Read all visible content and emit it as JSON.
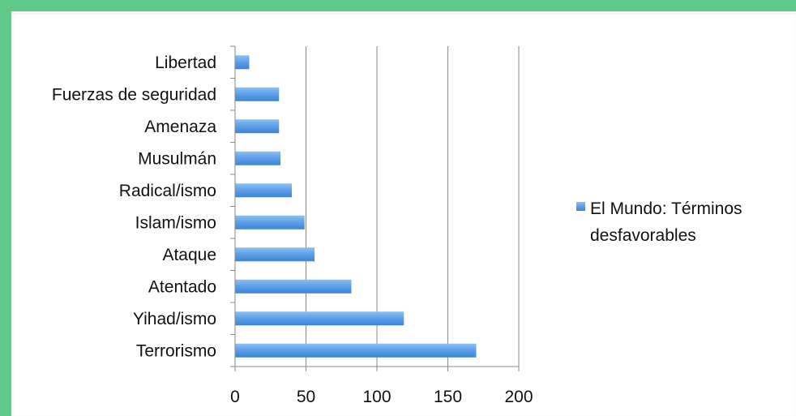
{
  "chart_data": {
    "type": "bar",
    "orientation": "horizontal",
    "categories": [
      "Terrorismo",
      "Yihad/ismo",
      "Atentado",
      "Ataque",
      "Islam/ismo",
      "Radical/ismo",
      "Musulmán",
      "Amenaza",
      "Fuerzas de seguridad",
      "Libertad"
    ],
    "series": [
      {
        "name": "El Mundo: Términos desfavorables",
        "values": [
          170,
          119,
          82,
          56,
          49,
          40,
          32,
          31,
          31,
          10
        ],
        "color": "#5b9ee8"
      }
    ],
    "xlim": [
      0,
      200
    ],
    "xticks": [
      "0",
      "50",
      "100",
      "150",
      "200"
    ],
    "grid": "vertical",
    "legend_position": "right",
    "legend_lines": [
      "El Mundo: Términos",
      "desfavorables"
    ]
  },
  "colors": {
    "frame": "#5fc98a",
    "bar": "#5b9ee8",
    "grid": "#8a8a8a"
  }
}
